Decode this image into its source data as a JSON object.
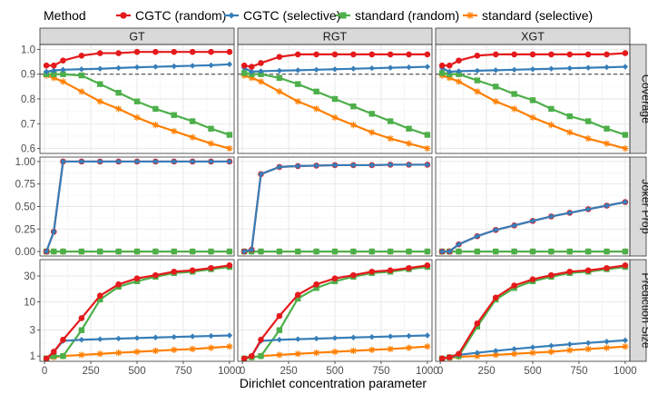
{
  "legend": {
    "title": "Method",
    "entries": [
      {
        "name": "CGTC (random)",
        "color": "#e41a1c",
        "marker": "circle"
      },
      {
        "name": "CGTC (selective)",
        "color": "#377eb8",
        "marker": "diamond"
      },
      {
        "name": "standard (random)",
        "color": "#4daf4a",
        "marker": "square"
      },
      {
        "name": "standard (selective)",
        "color": "#ff7f00",
        "marker": "asterisk"
      }
    ]
  },
  "chart_data": {
    "type": "line",
    "xlabel": "Dirichlet concentration parameter",
    "columns": [
      "GT",
      "RGT",
      "XGT"
    ],
    "rows": [
      {
        "strip": "Coverage",
        "scale": "linear",
        "ylim": [
          0.58,
          1.02
        ],
        "ticks": [
          0.6,
          0.7,
          0.8,
          0.9,
          1.0
        ],
        "tick_labels": [
          "0.6",
          "0.7",
          "0.8",
          "0.9",
          "1.0"
        ],
        "reference_line": 0.9
      },
      {
        "strip": "Joker Prop",
        "scale": "linear",
        "ylim": [
          -0.05,
          1.05
        ],
        "ticks": [
          0.0,
          0.25,
          0.5,
          0.75,
          1.0
        ],
        "tick_labels": [
          "0.00",
          "0.25",
          "0.50",
          "0.75",
          "1.00"
        ]
      },
      {
        "strip": "Prediction Size",
        "scale": "log",
        "ylim": [
          0.8,
          60
        ],
        "ticks": [
          1,
          3,
          10,
          30
        ],
        "tick_labels": [
          "1",
          "3",
          "10",
          "30"
        ]
      }
    ],
    "x_ticks": [
      0,
      250,
      500,
      750,
      1000
    ],
    "x_tick_labels": [
      "0",
      "250",
      "500",
      "750",
      "1000"
    ],
    "xlim": [
      -25,
      1025
    ],
    "x": [
      10,
      50,
      100,
      200,
      300,
      400,
      500,
      600,
      700,
      800,
      900,
      1000
    ],
    "panels": [
      {
        "row": 0,
        "col": 0,
        "series": [
          {
            "name": "CGTC (random)",
            "values": [
              0.935,
              0.935,
              0.955,
              0.975,
              0.985,
              0.985,
              0.99,
              0.99,
              0.99,
              0.99,
              0.99,
              0.99
            ]
          },
          {
            "name": "CGTC (selective)",
            "values": [
              0.91,
              0.915,
              0.918,
              0.92,
              0.922,
              0.925,
              0.928,
              0.93,
              0.932,
              0.934,
              0.936,
              0.94
            ]
          },
          {
            "name": "standard (random)",
            "values": [
              0.9,
              0.9,
              0.9,
              0.895,
              0.86,
              0.825,
              0.79,
              0.76,
              0.735,
              0.71,
              0.68,
              0.655
            ]
          },
          {
            "name": "standard (selective)",
            "values": [
              0.895,
              0.885,
              0.87,
              0.83,
              0.79,
              0.76,
              0.725,
              0.695,
              0.67,
              0.645,
              0.62,
              0.6
            ]
          }
        ]
      },
      {
        "row": 0,
        "col": 1,
        "series": [
          {
            "name": "CGTC (random)",
            "values": [
              0.935,
              0.93,
              0.945,
              0.97,
              0.98,
              0.98,
              0.98,
              0.98,
              0.98,
              0.98,
              0.98,
              0.98
            ]
          },
          {
            "name": "CGTC (selective)",
            "values": [
              0.925,
              0.91,
              0.912,
              0.914,
              0.916,
              0.918,
              0.92,
              0.922,
              0.924,
              0.926,
              0.928,
              0.93
            ]
          },
          {
            "name": "standard (random)",
            "values": [
              0.905,
              0.9,
              0.9,
              0.885,
              0.86,
              0.83,
              0.8,
              0.77,
              0.74,
              0.71,
              0.68,
              0.655
            ]
          },
          {
            "name": "standard (selective)",
            "values": [
              0.895,
              0.885,
              0.87,
              0.83,
              0.79,
              0.76,
              0.725,
              0.695,
              0.665,
              0.64,
              0.62,
              0.6
            ]
          }
        ]
      },
      {
        "row": 0,
        "col": 2,
        "series": [
          {
            "name": "CGTC (random)",
            "values": [
              0.935,
              0.935,
              0.955,
              0.975,
              0.98,
              0.98,
              0.98,
              0.98,
              0.98,
              0.98,
              0.98,
              0.985
            ]
          },
          {
            "name": "CGTC (selective)",
            "values": [
              0.925,
              0.91,
              0.912,
              0.914,
              0.916,
              0.918,
              0.92,
              0.922,
              0.924,
              0.926,
              0.928,
              0.93
            ]
          },
          {
            "name": "standard (random)",
            "values": [
              0.905,
              0.9,
              0.9,
              0.875,
              0.85,
              0.82,
              0.795,
              0.76,
              0.73,
              0.71,
              0.68,
              0.655
            ]
          },
          {
            "name": "standard (selective)",
            "values": [
              0.895,
              0.885,
              0.87,
              0.83,
              0.79,
              0.76,
              0.725,
              0.695,
              0.665,
              0.64,
              0.62,
              0.6
            ]
          }
        ]
      },
      {
        "row": 1,
        "col": 0,
        "series": [
          {
            "name": "CGTC (random)",
            "values": [
              0.0,
              0.22,
              1.0,
              1.0,
              1.0,
              1.0,
              1.0,
              1.0,
              1.0,
              1.0,
              1.0,
              1.0
            ]
          },
          {
            "name": "CGTC (selective)",
            "values": [
              0.0,
              0.22,
              1.0,
              1.0,
              1.0,
              1.0,
              1.0,
              1.0,
              1.0,
              1.0,
              1.0,
              1.0
            ]
          },
          {
            "name": "standard (random)",
            "values": [
              0,
              0,
              0,
              0,
              0,
              0,
              0,
              0,
              0,
              0,
              0,
              0
            ]
          },
          {
            "name": "standard (selective)",
            "values": [
              0,
              0,
              0,
              0,
              0,
              0,
              0,
              0,
              0,
              0,
              0,
              0
            ]
          }
        ]
      },
      {
        "row": 1,
        "col": 1,
        "series": [
          {
            "name": "CGTC (random)",
            "values": [
              0.0,
              0.02,
              0.86,
              0.94,
              0.95,
              0.955,
              0.96,
              0.96,
              0.96,
              0.965,
              0.965,
              0.965
            ]
          },
          {
            "name": "CGTC (selective)",
            "values": [
              0.0,
              0.02,
              0.86,
              0.94,
              0.95,
              0.955,
              0.96,
              0.96,
              0.96,
              0.965,
              0.965,
              0.965
            ]
          },
          {
            "name": "standard (random)",
            "values": [
              0,
              0,
              0,
              0,
              0,
              0,
              0,
              0,
              0,
              0,
              0,
              0
            ]
          },
          {
            "name": "standard (selective)",
            "values": [
              0,
              0,
              0,
              0,
              0,
              0,
              0,
              0,
              0,
              0,
              0,
              0
            ]
          }
        ]
      },
      {
        "row": 1,
        "col": 2,
        "series": [
          {
            "name": "CGTC (random)",
            "values": [
              0.0,
              0.0,
              0.08,
              0.17,
              0.24,
              0.29,
              0.34,
              0.39,
              0.43,
              0.47,
              0.51,
              0.55
            ]
          },
          {
            "name": "CGTC (selective)",
            "values": [
              0.0,
              0.0,
              0.08,
              0.17,
              0.24,
              0.29,
              0.34,
              0.39,
              0.43,
              0.47,
              0.51,
              0.55
            ]
          },
          {
            "name": "standard (random)",
            "values": [
              0,
              0,
              0,
              0,
              0,
              0,
              0,
              0,
              0,
              0,
              0,
              0
            ]
          },
          {
            "name": "standard (selective)",
            "values": [
              0,
              0,
              0,
              0,
              0,
              0,
              0,
              0,
              0,
              0,
              0,
              0
            ]
          }
        ]
      },
      {
        "row": 2,
        "col": 0,
        "series": [
          {
            "name": "CGTC (random)",
            "values": [
              0.9,
              1.2,
              2.0,
              5.0,
              13.0,
              21.0,
              27.0,
              31.0,
              36.0,
              38.0,
              42.0,
              47.0
            ]
          },
          {
            "name": "CGTC (selective)",
            "values": [
              0.9,
              1.2,
              1.9,
              2.0,
              2.05,
              2.1,
              2.15,
              2.2,
              2.25,
              2.3,
              2.35,
              2.4
            ]
          },
          {
            "name": "standard (random)",
            "values": [
              0.9,
              1.0,
              1.0,
              3.0,
              11.0,
              19.0,
              24.0,
              29.0,
              34.0,
              36.0,
              40.0,
              44.0
            ]
          },
          {
            "name": "standard (selective)",
            "values": [
              0.9,
              0.95,
              1.0,
              1.05,
              1.1,
              1.15,
              1.2,
              1.25,
              1.3,
              1.35,
              1.42,
              1.5
            ]
          }
        ]
      },
      {
        "row": 2,
        "col": 1,
        "series": [
          {
            "name": "CGTC (random)",
            "values": [
              0.9,
              1.0,
              2.0,
              5.5,
              13.5,
              21.0,
              27.0,
              31.0,
              36.0,
              38.0,
              42.0,
              47.0
            ]
          },
          {
            "name": "CGTC (selective)",
            "values": [
              0.9,
              1.0,
              1.9,
              2.0,
              2.05,
              2.1,
              2.15,
              2.2,
              2.25,
              2.3,
              2.35,
              2.4
            ]
          },
          {
            "name": "standard (random)",
            "values": [
              0.9,
              0.95,
              1.0,
              3.0,
              11.5,
              18.0,
              24.0,
              29.0,
              34.0,
              36.0,
              40.0,
              44.0
            ]
          },
          {
            "name": "standard (selective)",
            "values": [
              0.9,
              0.95,
              1.0,
              1.05,
              1.1,
              1.15,
              1.2,
              1.25,
              1.3,
              1.35,
              1.42,
              1.5
            ]
          }
        ]
      },
      {
        "row": 2,
        "col": 2,
        "series": [
          {
            "name": "CGTC (random)",
            "values": [
              0.9,
              0.95,
              1.1,
              4.0,
              12.0,
              20.0,
              26.0,
              31.0,
              36.0,
              38.0,
              42.0,
              47.0
            ]
          },
          {
            "name": "CGTC (selective)",
            "values": [
              0.9,
              0.95,
              1.05,
              1.15,
              1.25,
              1.35,
              1.45,
              1.55,
              1.65,
              1.75,
              1.85,
              1.95
            ]
          },
          {
            "name": "standard (random)",
            "values": [
              0.9,
              0.95,
              1.0,
              3.5,
              11.0,
              18.0,
              24.0,
              29.0,
              34.0,
              36.0,
              40.0,
              44.0
            ]
          },
          {
            "name": "standard (selective)",
            "values": [
              0.9,
              0.92,
              0.97,
              1.0,
              1.05,
              1.1,
              1.15,
              1.2,
              1.28,
              1.35,
              1.42,
              1.5
            ]
          }
        ]
      }
    ]
  }
}
